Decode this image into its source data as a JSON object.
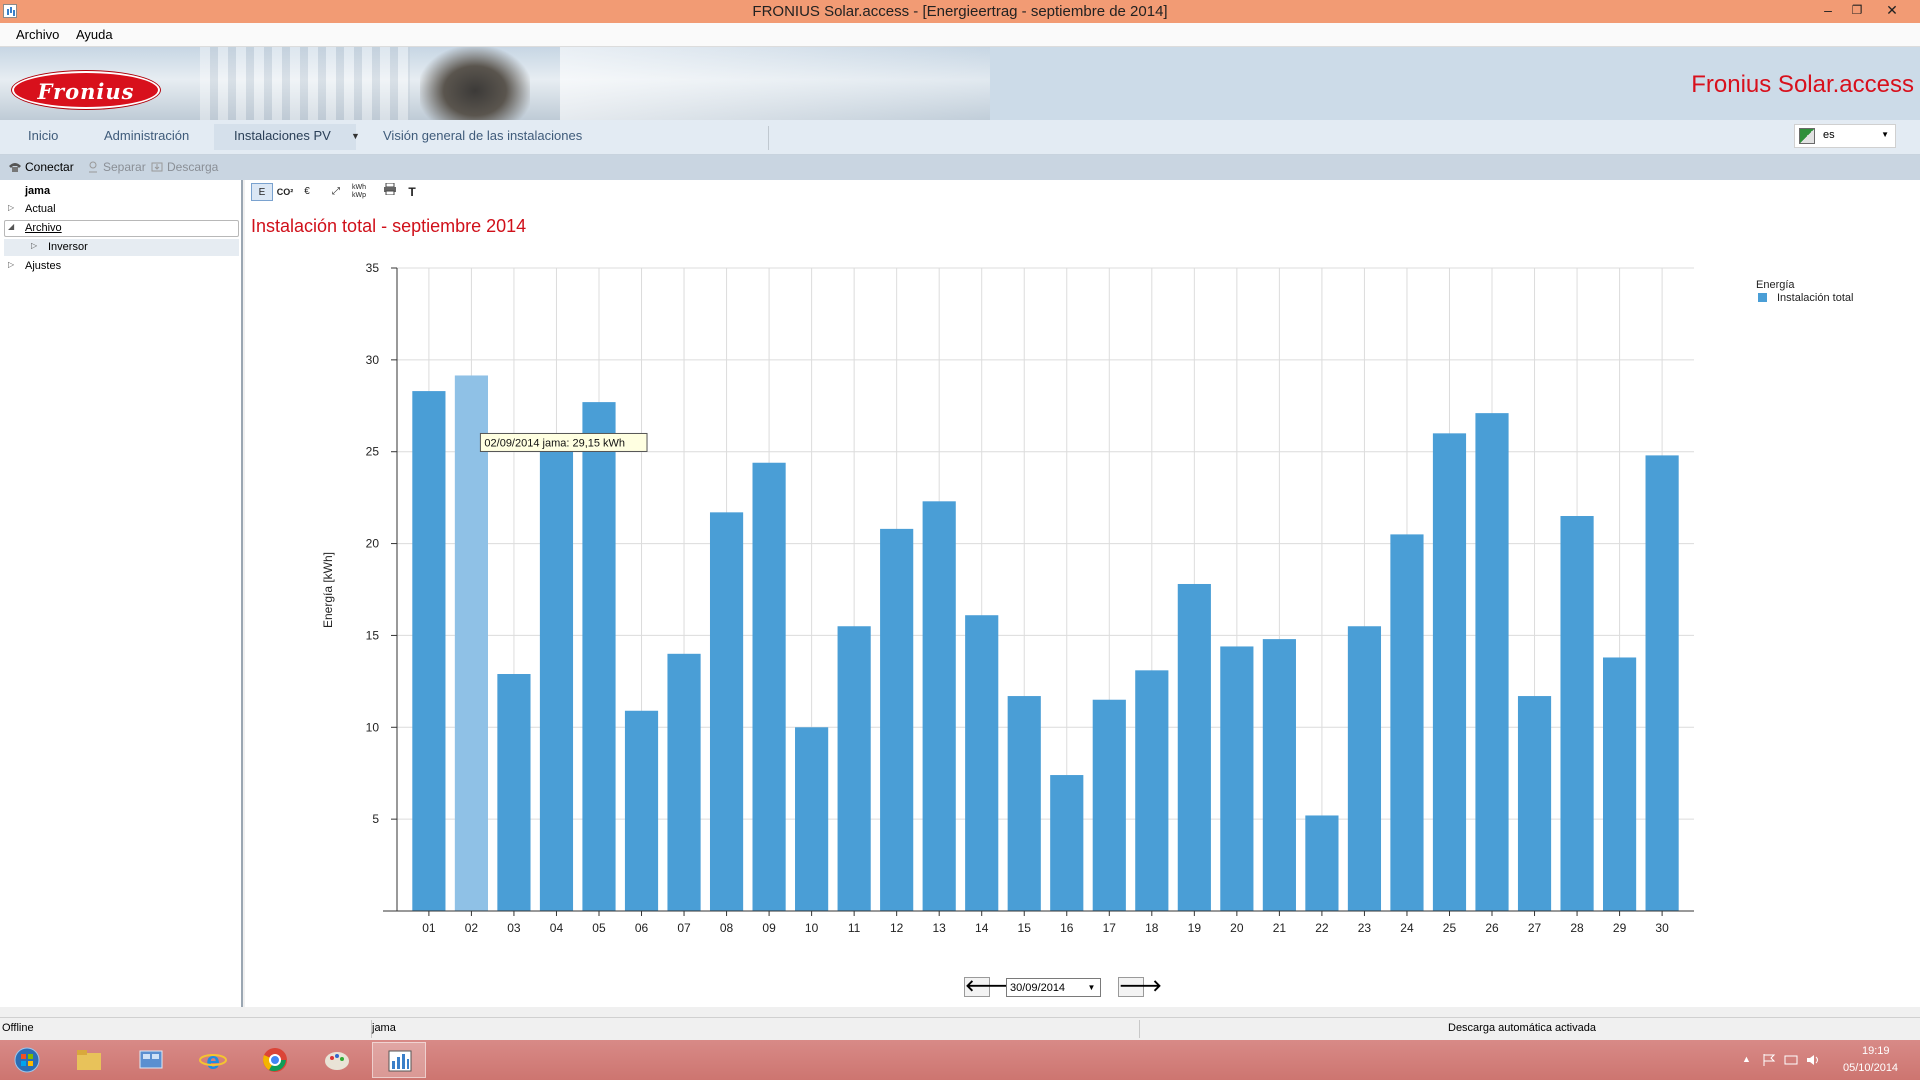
{
  "window": {
    "title": "FRONIUS Solar.access - [Energieertrag - septiembre de 2014]",
    "controls": [
      "–",
      "❐",
      "✕"
    ]
  },
  "menu": [
    "Archivo",
    "Ayuda"
  ],
  "banner": {
    "logo_text": "Fronius",
    "brand": "Fronius Solar.access"
  },
  "nav": {
    "tabs": [
      "Inicio",
      "Administración",
      "Instalaciones PV",
      "Visión general de las instalaciones"
    ],
    "active_tab": "Instalaciones PV",
    "language": "es"
  },
  "toolbar": {
    "connect": "Conectar",
    "separate": "Separar",
    "download": "Descarga"
  },
  "tree": {
    "root": "jama",
    "items": [
      {
        "label": "Actual",
        "expanded": false
      },
      {
        "label": "Archivo",
        "expanded": true
      },
      {
        "label": "Inversor",
        "expanded": false
      },
      {
        "label": "Ajustes",
        "expanded": false
      }
    ]
  },
  "chart_toolbar": {
    "buttons": [
      "E",
      "CO²",
      "€",
      "⤢",
      "kWh/kWp",
      "print",
      "T"
    ],
    "kwh": "kWh",
    "kwp": "kWp"
  },
  "chart_data": {
    "type": "bar",
    "title": "Instalación total - septiembre 2014",
    "ylabel": "Energía [kWh]",
    "xlabel": "",
    "ylim": [
      0,
      35
    ],
    "yticks": [
      5,
      10,
      15,
      20,
      25,
      30,
      35
    ],
    "categories": [
      "01",
      "02",
      "03",
      "04",
      "05",
      "06",
      "07",
      "08",
      "09",
      "10",
      "11",
      "12",
      "13",
      "14",
      "15",
      "16",
      "17",
      "18",
      "19",
      "20",
      "21",
      "22",
      "23",
      "24",
      "25",
      "26",
      "27",
      "28",
      "29",
      "30"
    ],
    "series": [
      {
        "name": "Instalación total",
        "color": "#4a9ed6",
        "values": [
          28.3,
          29.15,
          12.9,
          25.6,
          27.7,
          10.9,
          14.0,
          21.7,
          24.4,
          10.0,
          15.5,
          20.8,
          22.3,
          16.1,
          11.7,
          7.4,
          11.5,
          13.1,
          17.8,
          14.4,
          14.8,
          5.2,
          15.5,
          20.5,
          26.0,
          27.1,
          11.7,
          21.5,
          13.8,
          24.8
        ]
      }
    ],
    "legend": {
      "title": "Energía",
      "position": "top-right"
    },
    "highlight_index": 1,
    "tooltip": "02/09/2014 jama: 29,15 kWh",
    "grid": true
  },
  "date_nav": {
    "prev": "🡐",
    "next": "🡒",
    "date": "30/09/2014"
  },
  "status": {
    "connection": "Offline",
    "system": "jama",
    "message": "Descarga automática activada"
  },
  "taskbar": {
    "time": "19:19",
    "date": "05/10/2014"
  }
}
